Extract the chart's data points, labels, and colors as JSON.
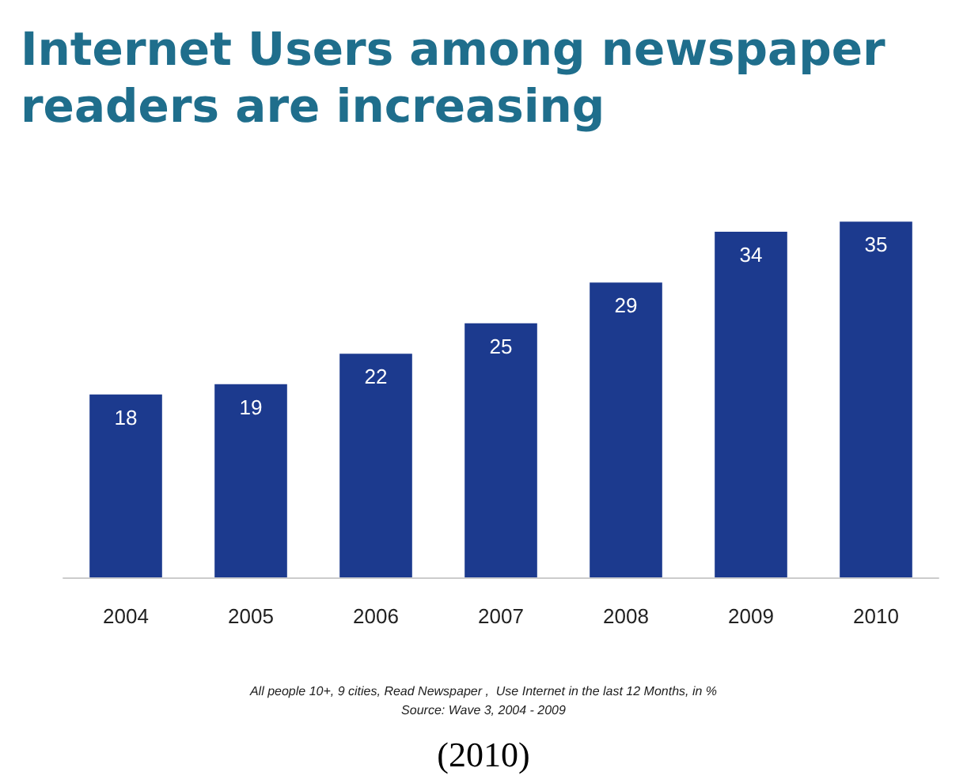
{
  "chart_data": {
    "type": "bar",
    "title": "Internet Users among newspaper\nreaders are increasing",
    "categories": [
      "2004",
      "2005",
      "2006",
      "2007",
      "2008",
      "2009",
      "2010"
    ],
    "values": [
      18,
      19,
      22,
      25,
      29,
      34,
      35
    ],
    "color": "#1c3a8e",
    "data_labels": true,
    "annotations": [
      "All people 10+, 9 cities, Read Newspaper ,  Use Internet in the last 12 Months, in %",
      "Source: Wave 3, 2004 - 2009",
      "(2010)"
    ]
  }
}
